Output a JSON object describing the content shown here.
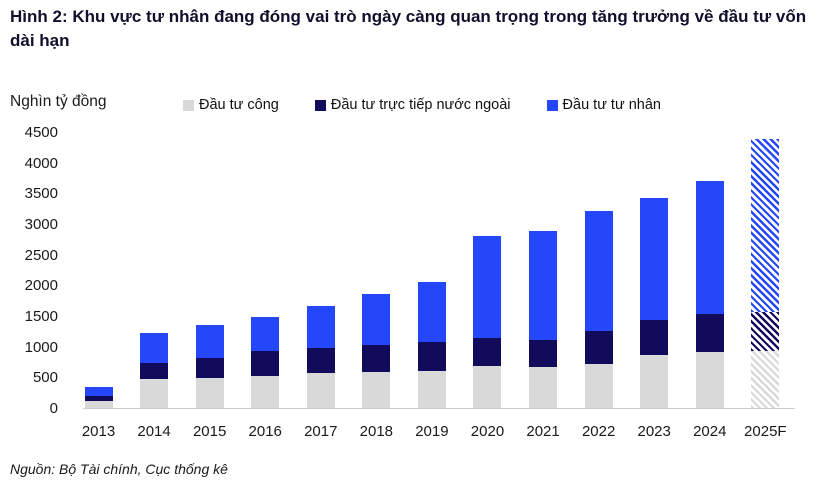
{
  "title": "Hình 2: Khu vực tư nhân đang đóng vai trò ngày càng quan trọng trong tăng trưởng về đầu tư vốn dài hạn",
  "y_unit_label": "Nghìn tỷ đồng",
  "source": "Nguồn: Bộ Tài chính, Cục thống kê",
  "colors": {
    "public_gray": "#d9d9d9",
    "fdi_navy": "#120a5a",
    "private_blue": "#2447fa",
    "title_text": "#10102c",
    "axis_line": "#cdcdcd"
  },
  "chart_data": {
    "type": "bar",
    "stacked": true,
    "title": "Hình 2: Khu vực tư nhân đang đóng vai trò ngày càng quan trọng trong tăng trưởng về đầu tư vốn dài hạn",
    "y_unit": "Nghìn tỷ đồng",
    "categories": [
      "2013",
      "2014",
      "2015",
      "2016",
      "2017",
      "2018",
      "2019",
      "2020",
      "2021",
      "2022",
      "2023",
      "2024",
      "2025F"
    ],
    "series": [
      {
        "name": "Đầu tư công",
        "color": "#d9d9d9",
        "values": [
          115,
          470,
          490,
          520,
          575,
          585,
          610,
          690,
          665,
          715,
          865,
          920,
          935
        ]
      },
      {
        "name": "Đầu tư trực tiếp nước ngoài",
        "color": "#120a5a",
        "values": [
          80,
          260,
          325,
          410,
          400,
          440,
          465,
          450,
          445,
          545,
          570,
          610,
          630
        ]
      },
      {
        "name": "Đầu tư tư nhân",
        "color": "#2447fa",
        "values": [
          145,
          490,
          545,
          560,
          695,
          835,
          975,
          1660,
          1780,
          1960,
          1985,
          2170,
          2820
        ]
      }
    ],
    "totals": [
      340,
      1220,
      1360,
      1490,
      1670,
      1860,
      2050,
      2800,
      2890,
      3220,
      3420,
      3700,
      4385
    ],
    "forecast_category": "2025F",
    "forecast_style": "diagonal-hatch",
    "ylim": [
      0,
      4500
    ],
    "ytick_step": 500,
    "yticks": [
      0,
      500,
      1000,
      1500,
      2000,
      2500,
      3000,
      3500,
      4000,
      4500
    ],
    "grid": false,
    "legend_position": "top"
  }
}
